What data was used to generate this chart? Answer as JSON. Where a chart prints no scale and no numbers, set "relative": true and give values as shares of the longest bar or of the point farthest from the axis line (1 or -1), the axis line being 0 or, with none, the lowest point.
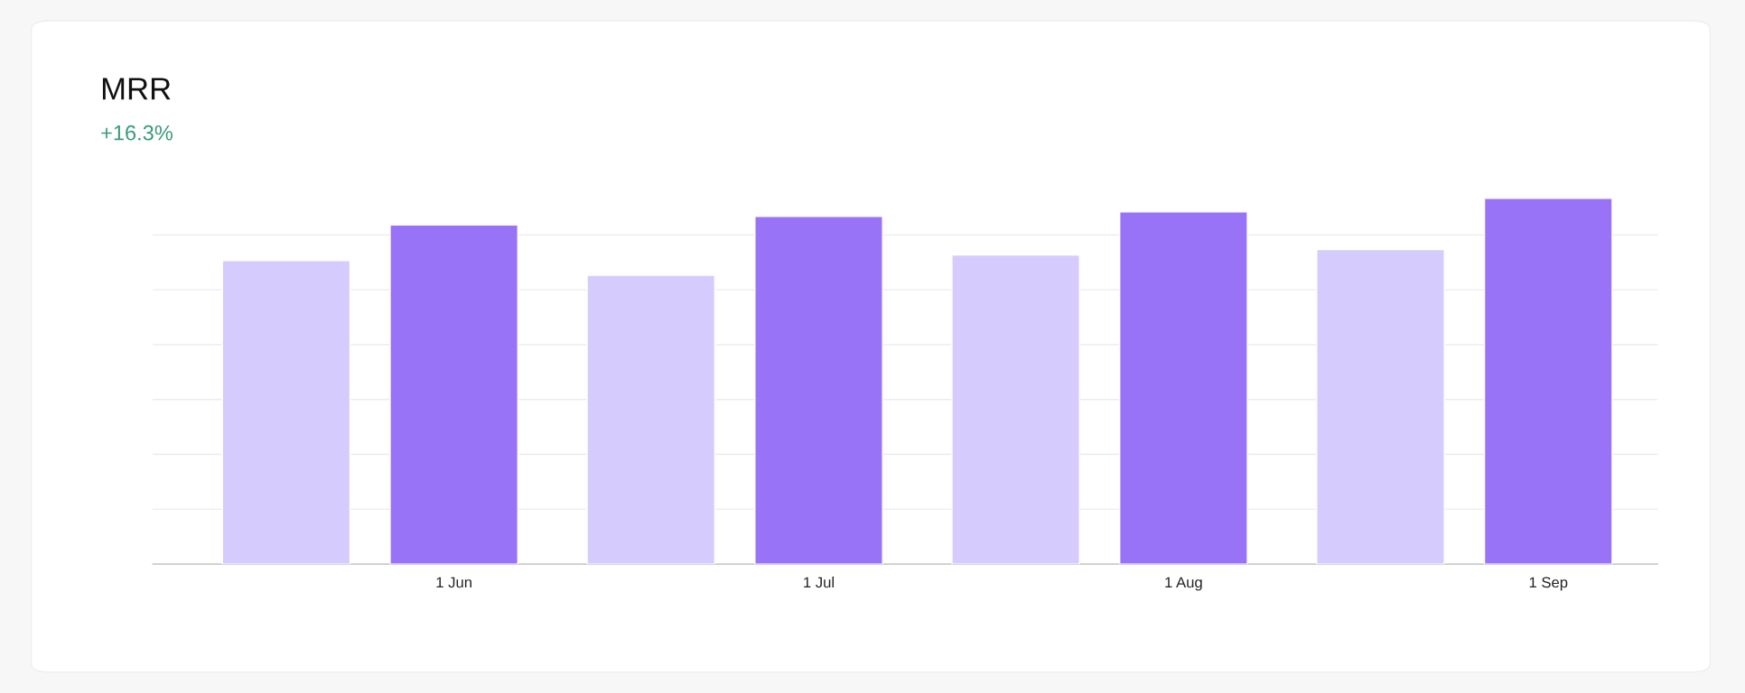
{
  "chart_data": {
    "type": "bar",
    "title": "MRR",
    "subtitle": "+16.3%",
    "relative": true,
    "grid": "y",
    "legend": false,
    "categories": [
      "1 Jun",
      "1 Jul",
      "1 Aug",
      "1 Sep"
    ],
    "series": [
      {
        "color": "#d6cbfd",
        "values": [
          0.83,
          0.79,
          0.845,
          0.86
        ]
      },
      {
        "color": "#9873f8",
        "values": [
          0.927,
          0.951,
          0.963,
          1
        ]
      }
    ]
  }
}
